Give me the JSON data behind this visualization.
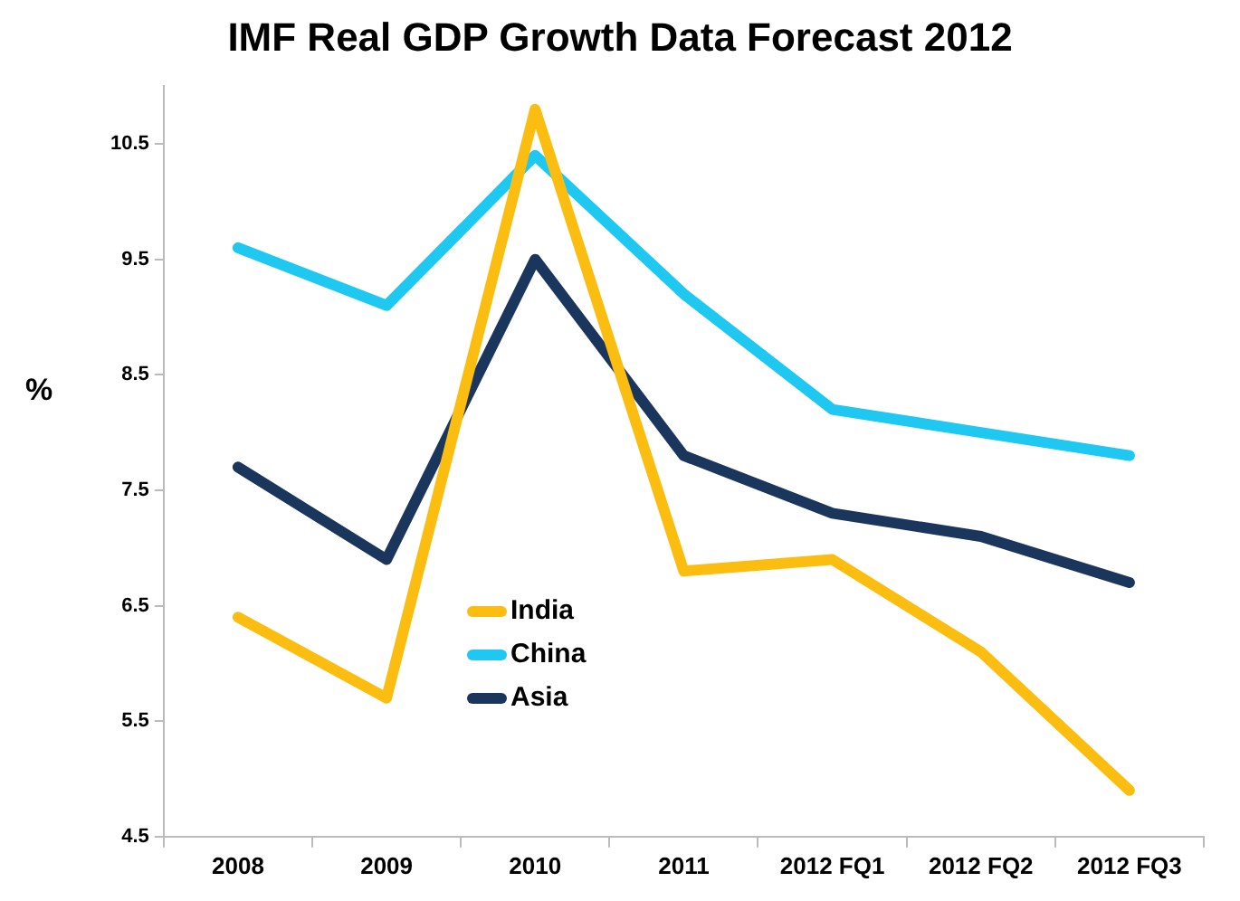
{
  "chart_data": {
    "type": "line",
    "title": "IMF Real GDP Growth Data Forecast 2012",
    "ylabel": "%",
    "categories": [
      "2008",
      "2009",
      "2010",
      "2011",
      "2012 FQ1",
      "2012 FQ2",
      "2012 FQ3"
    ],
    "series": [
      {
        "name": "India",
        "color": "#fbbd0f",
        "values": [
          6.4,
          5.7,
          10.8,
          6.8,
          6.9,
          6.1,
          4.9
        ]
      },
      {
        "name": "China",
        "color": "#1ec8f0",
        "values": [
          9.6,
          9.1,
          10.4,
          9.2,
          8.2,
          8.0,
          7.8
        ]
      },
      {
        "name": "Asia",
        "color": "#1b365d",
        "values": [
          7.7,
          6.9,
          9.5,
          7.8,
          7.3,
          7.1,
          6.7
        ]
      }
    ],
    "ylim": [
      4.5,
      11
    ],
    "yticks": [
      4.5,
      5.5,
      6.5,
      7.5,
      8.5,
      9.5,
      10.5
    ],
    "grid": false,
    "legend": "center left",
    "marker": "none",
    "line_style": "solid"
  }
}
